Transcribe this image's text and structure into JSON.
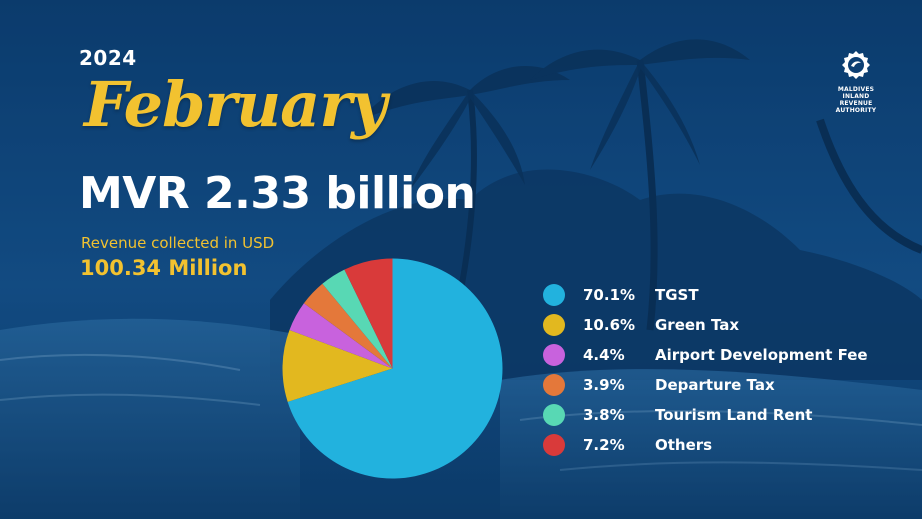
{
  "header": {
    "year": "2024",
    "month": "February",
    "total": "MVR 2.33 billion",
    "usd_label": "Revenue collected in USD",
    "usd_value": "100.34 Million"
  },
  "logo": {
    "icon": "mira-emblem-icon",
    "lines": [
      "MALDIVES",
      "INLAND REVENUE",
      "AUTHORITY"
    ]
  },
  "chart_data": {
    "type": "pie",
    "title": "",
    "slices": [
      {
        "name": "TGST",
        "label": "70.1%",
        "value": 70.1,
        "color": "#22b2de"
      },
      {
        "name": "Green Tax",
        "label": "10.6%",
        "value": 10.6,
        "color": "#e2b81f"
      },
      {
        "name": "Airport Development Fee",
        "label": "4.4%",
        "value": 4.4,
        "color": "#c862dd"
      },
      {
        "name": "Departure Tax",
        "label": "3.9%",
        "value": 3.9,
        "color": "#e4783a"
      },
      {
        "name": "Tourism Land Rent",
        "label": "3.8%",
        "value": 3.8,
        "color": "#58d8b4"
      },
      {
        "name": "Others",
        "label": "7.2%",
        "value": 7.2,
        "color": "#d93a3a"
      }
    ],
    "legend_position": "right"
  }
}
